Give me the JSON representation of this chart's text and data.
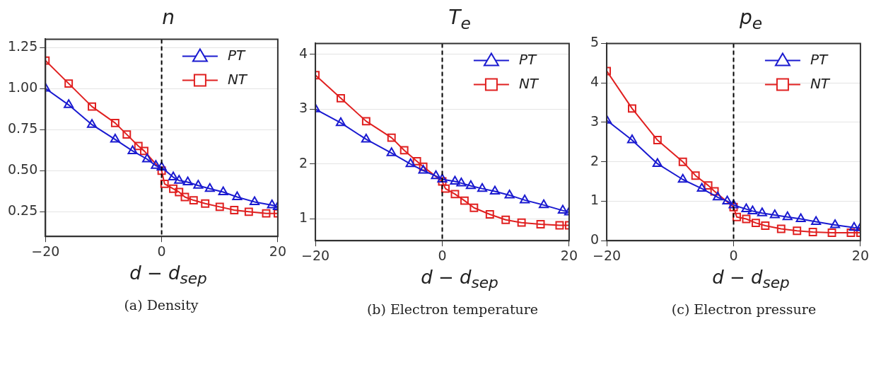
{
  "chart_data": [
    {
      "type": "line",
      "title": "n",
      "xlabel": "d − d$_{sep}$",
      "annotations": [
        "(a) Density"
      ],
      "xlim": [
        -20,
        20
      ],
      "xticks": [
        -20,
        0,
        20
      ],
      "ylim": [
        0.1,
        1.3
      ],
      "yticks": [
        {
          "value": 0.25,
          "label": "0.25"
        },
        {
          "value": 0.5,
          "label": "0.50"
        },
        {
          "value": 0.75,
          "label": "0.75"
        },
        {
          "value": 1,
          "label": "1.00"
        },
        {
          "value": 1.25,
          "label": "1.25"
        }
      ],
      "grid": true,
      "legend": "top right",
      "ref_lines": [
        {
          "axis": "x",
          "value": 0,
          "color": "#000000",
          "line_style": "dashed"
        }
      ],
      "series": [
        {
          "name": "PT",
          "color": "#1a1ad0",
          "marker": "triangle",
          "x": [
            -20,
            -16,
            -12,
            -8,
            -5,
            -2.5,
            -1,
            0,
            2,
            3,
            4.5,
            6.3,
            8.3,
            10.6,
            13,
            16,
            19,
            20
          ],
          "values": [
            1.0,
            0.9,
            0.78,
            0.69,
            0.62,
            0.57,
            0.53,
            0.52,
            0.46,
            0.44,
            0.43,
            0.41,
            0.39,
            0.37,
            0.34,
            0.31,
            0.29,
            0.28
          ]
        },
        {
          "name": "NT",
          "color": "#e02020",
          "marker": "square",
          "x": [
            -20,
            -16,
            -12,
            -8,
            -6,
            -4,
            -3,
            0,
            0.5,
            2,
            3,
            4,
            5.5,
            7.5,
            10,
            12.5,
            15,
            18,
            20
          ],
          "values": [
            1.17,
            1.03,
            0.89,
            0.79,
            0.72,
            0.65,
            0.62,
            0.5,
            0.42,
            0.39,
            0.37,
            0.34,
            0.32,
            0.3,
            0.28,
            0.26,
            0.25,
            0.24,
            0.24
          ]
        }
      ]
    },
    {
      "type": "line",
      "title": "T$_{e}$",
      "xlabel": "d − d$_{sep}$",
      "annotations": [
        "(b) Electron temperature"
      ],
      "xlim": [
        -20,
        20
      ],
      "xticks": [
        -20,
        0,
        20
      ],
      "ylim": [
        0.6,
        4.2
      ],
      "yticks": [
        1,
        2,
        3,
        4
      ],
      "grid": true,
      "legend": "top right",
      "ref_lines": [
        {
          "axis": "x",
          "value": 0,
          "color": "#000000",
          "line_style": "dashed"
        }
      ],
      "series": [
        {
          "name": "PT",
          "color": "#1a1ad0",
          "marker": "triangle",
          "x": [
            -20,
            -16,
            -12,
            -8,
            -5,
            -3,
            -1,
            0,
            2,
            3,
            4.5,
            6.3,
            8.3,
            10.6,
            13,
            16,
            19,
            20
          ],
          "values": [
            3.0,
            2.75,
            2.45,
            2.2,
            2.0,
            1.88,
            1.78,
            1.72,
            1.68,
            1.65,
            1.6,
            1.55,
            1.5,
            1.43,
            1.34,
            1.25,
            1.15,
            1.12
          ]
        },
        {
          "name": "NT",
          "color": "#e02020",
          "marker": "square",
          "x": [
            -20,
            -16,
            -12,
            -8,
            -6,
            -4,
            -3,
            0,
            0.5,
            2,
            3.5,
            5,
            7.5,
            10,
            12.5,
            15.5,
            18.5,
            20
          ],
          "values": [
            3.62,
            3.2,
            2.78,
            2.48,
            2.25,
            2.05,
            1.95,
            1.68,
            1.55,
            1.45,
            1.33,
            1.2,
            1.08,
            0.98,
            0.93,
            0.9,
            0.88,
            0.88
          ]
        }
      ]
    },
    {
      "type": "line",
      "title": "p$_{e}$",
      "xlabel": "d − d$_{sep}$",
      "annotations": [
        "(c) Electron pressure"
      ],
      "xlim": [
        -20,
        20
      ],
      "xticks": [
        -20,
        0,
        20
      ],
      "ylim": [
        0,
        5
      ],
      "yticks": [
        0,
        1,
        2,
        3,
        4,
        5
      ],
      "grid": true,
      "legend": "top right",
      "ref_lines": [
        {
          "axis": "x",
          "value": 0,
          "color": "#000000",
          "line_style": "dashed"
        }
      ],
      "series": [
        {
          "name": "PT",
          "color": "#1a1ad0",
          "marker": "triangle",
          "x": [
            -20,
            -16,
            -12,
            -8,
            -5,
            -2.5,
            -1,
            0,
            2,
            3,
            4.5,
            6.5,
            8.5,
            10.6,
            13,
            16,
            19,
            20
          ],
          "values": [
            3.05,
            2.55,
            1.95,
            1.55,
            1.32,
            1.1,
            1.0,
            0.9,
            0.8,
            0.75,
            0.7,
            0.65,
            0.6,
            0.55,
            0.48,
            0.4,
            0.33,
            0.32
          ]
        },
        {
          "name": "NT",
          "color": "#e02020",
          "marker": "square",
          "x": [
            -20,
            -16,
            -12,
            -8,
            -6,
            -4,
            -3,
            0,
            0.5,
            2,
            3.5,
            5,
            7.5,
            10,
            12.5,
            15.5,
            18.5,
            20
          ],
          "values": [
            4.3,
            3.35,
            2.55,
            2.0,
            1.65,
            1.4,
            1.25,
            0.85,
            0.6,
            0.55,
            0.45,
            0.38,
            0.3,
            0.25,
            0.22,
            0.2,
            0.2,
            0.2
          ]
        }
      ]
    }
  ]
}
